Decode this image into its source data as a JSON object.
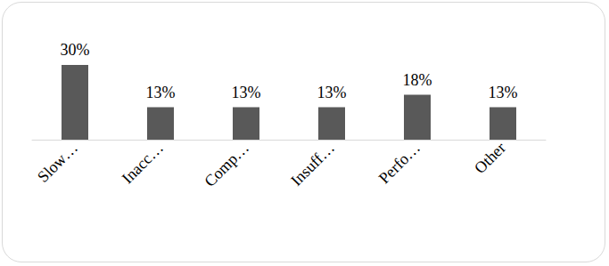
{
  "chart_data": {
    "type": "bar",
    "categories": [
      "Slow…",
      "Inacc…",
      "Comp…",
      "Insuff…",
      "Perfo…",
      "Other"
    ],
    "values": [
      30,
      13,
      13,
      13,
      18,
      13
    ],
    "value_labels": [
      "30%",
      "13%",
      "13%",
      "13%",
      "18%",
      "13%"
    ],
    "color": "#595959",
    "ylim": [
      0,
      30
    ],
    "grid": false,
    "data_labels": true,
    "tick_labels": "x"
  }
}
